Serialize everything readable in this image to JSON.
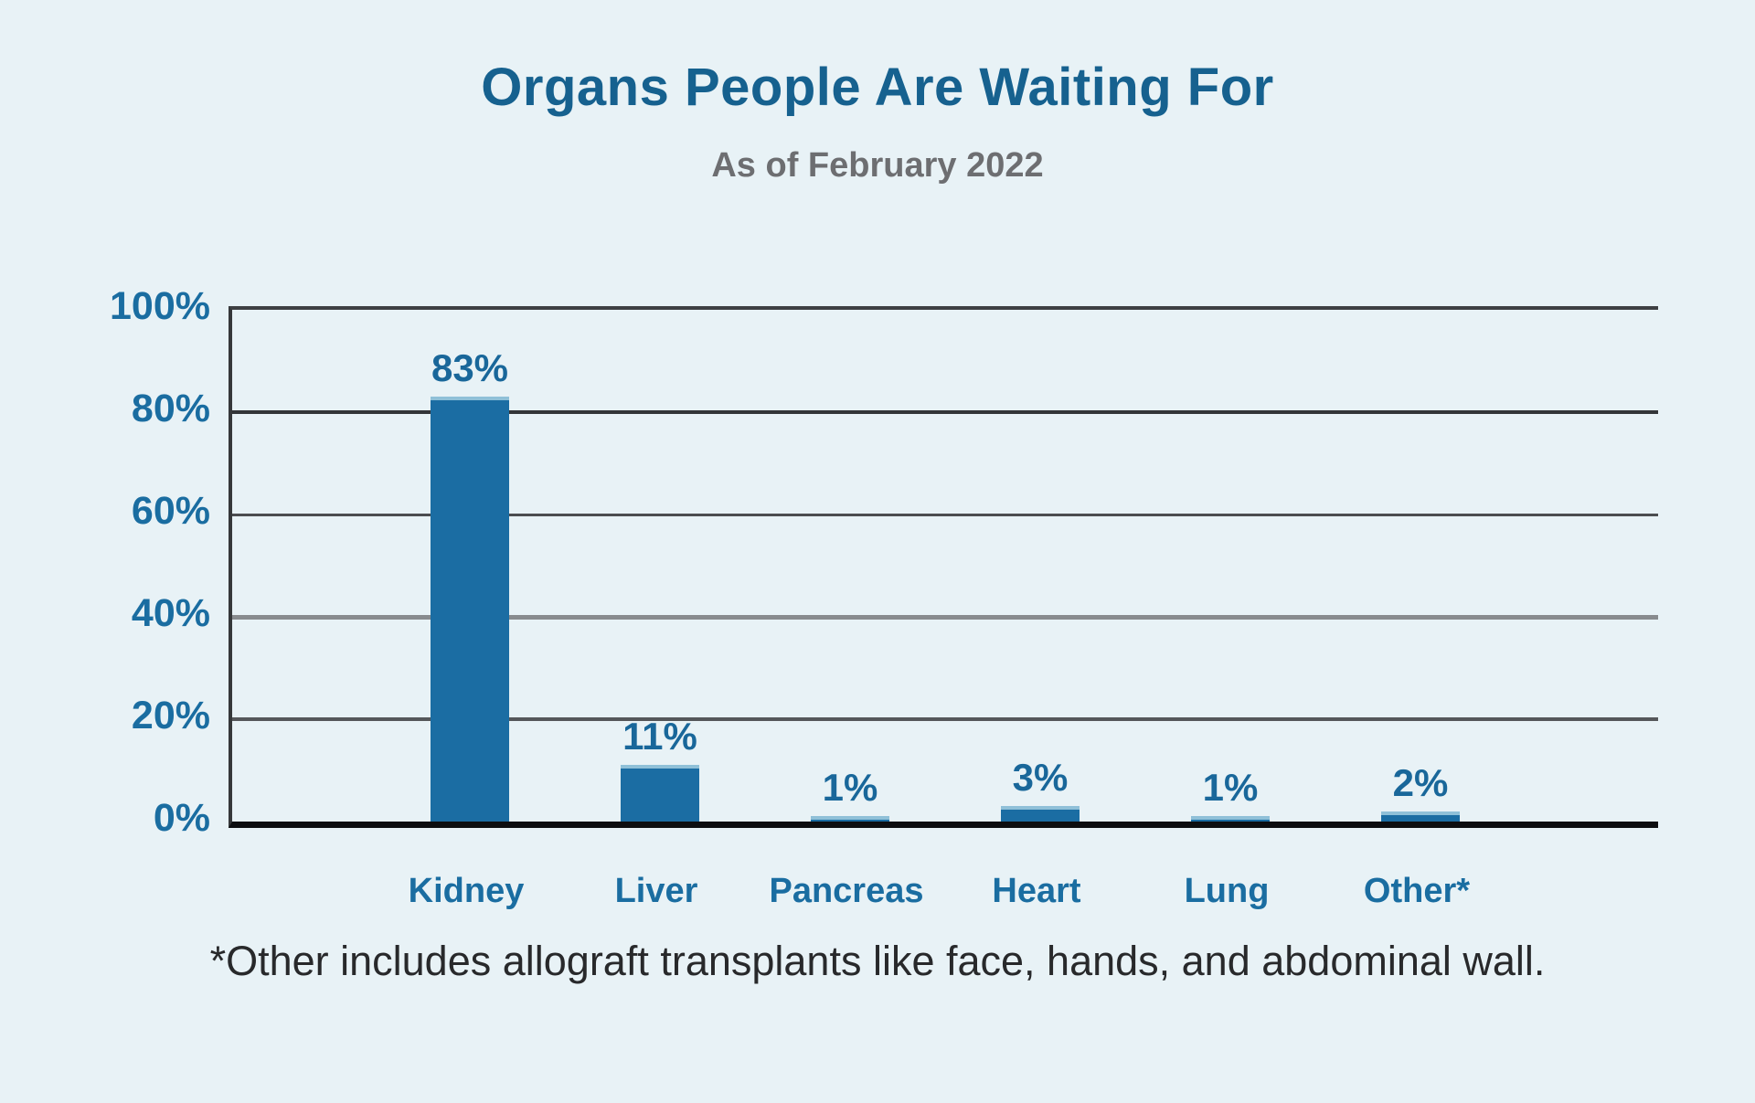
{
  "chart_data": {
    "type": "bar",
    "title": "Organs People Are Waiting For",
    "subtitle": "As of February 2022",
    "categories": [
      "Kidney",
      "Liver",
      "Pancreas",
      "Heart",
      "Lung",
      "Other*"
    ],
    "values": [
      83,
      11,
      1,
      3,
      1,
      2
    ],
    "value_labels": [
      "83%",
      "11%",
      "1%",
      "3%",
      "1%",
      "2%"
    ],
    "xlabel": "",
    "ylabel": "",
    "ylim": [
      0,
      100
    ],
    "yticks": [
      "0%",
      "20%",
      "40%",
      "60%",
      "80%",
      "100%"
    ],
    "grid": true,
    "legend": "none",
    "footnote": "*Other includes allograft transplants like face, hands, and abdominal wall.",
    "bar_color": "#1b6da3",
    "bar_cap_color": "#8fc0d8",
    "title_color": "#16618f",
    "subtitle_color": "#6d6e71",
    "axis_label_color": "#1a6da1",
    "background_color": "#e8f2f6"
  }
}
